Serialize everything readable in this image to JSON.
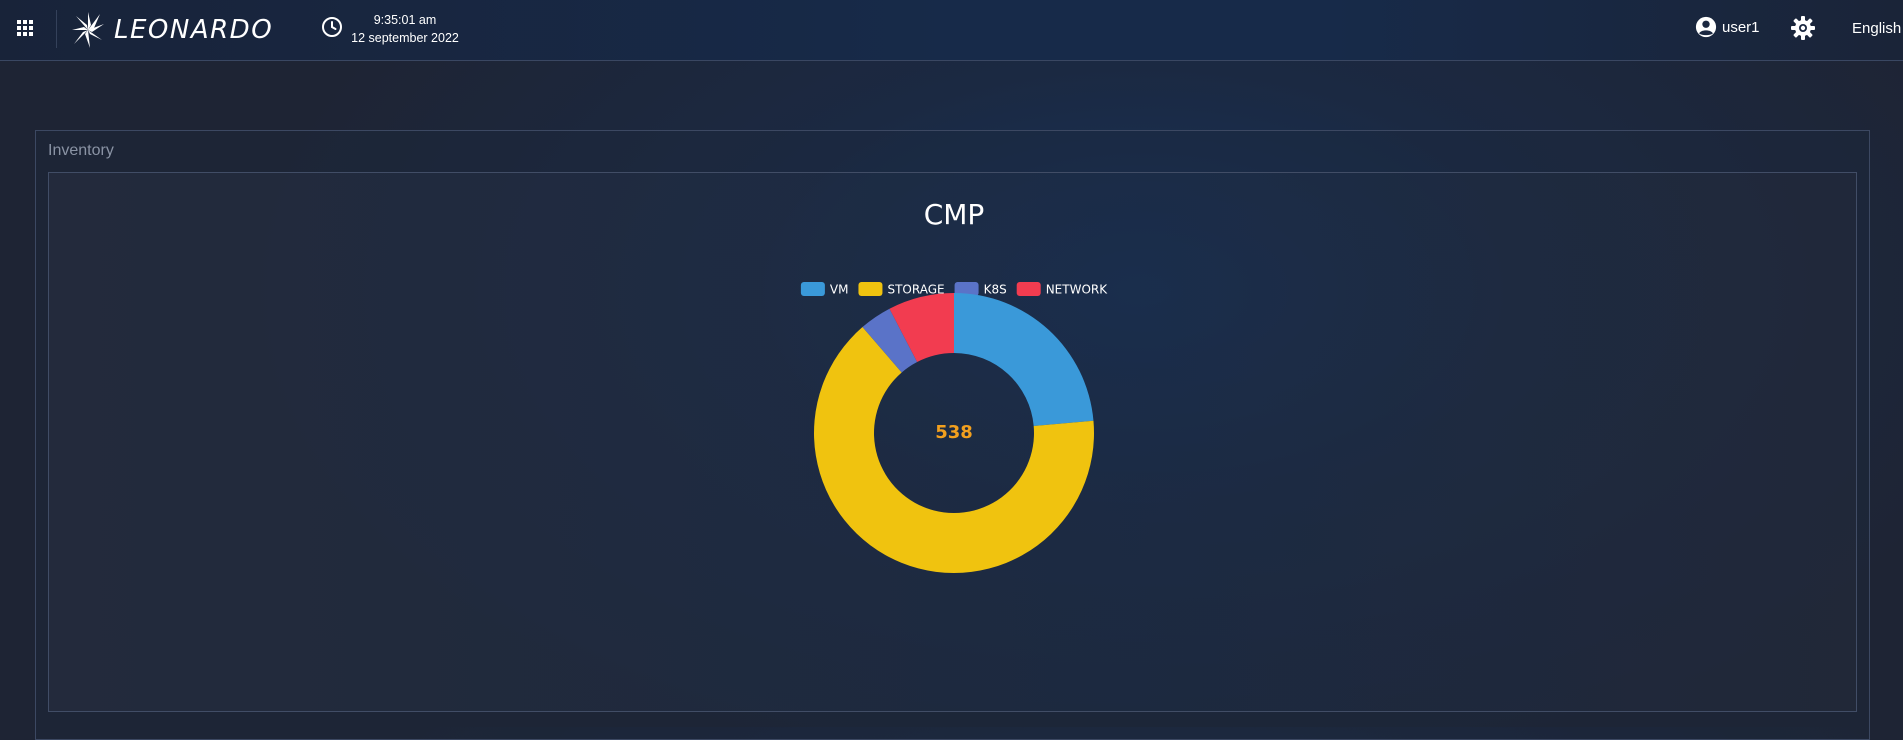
{
  "header": {
    "apps_icon": "apps-grid-icon",
    "logo_text": "LEONARDO",
    "clock_icon": "clock-icon",
    "time": "9:35:01 am",
    "date": "12 september 2022",
    "user_icon": "account-circle-icon",
    "user_label": "user1",
    "settings_icon": "gear-icon",
    "language": "English"
  },
  "panel": {
    "title": "Inventory"
  },
  "chart_data": {
    "type": "pie",
    "title": "CMP",
    "center_label": "538",
    "categories": [
      "VM",
      "STORAGE",
      "K8S",
      "NETWORK"
    ],
    "values": [
      127,
      350,
      20,
      41
    ],
    "colors": [
      "#3a99d9",
      "#f0c30f",
      "#5a73c8",
      "#f23c50"
    ],
    "legend": "top",
    "donut": true
  }
}
